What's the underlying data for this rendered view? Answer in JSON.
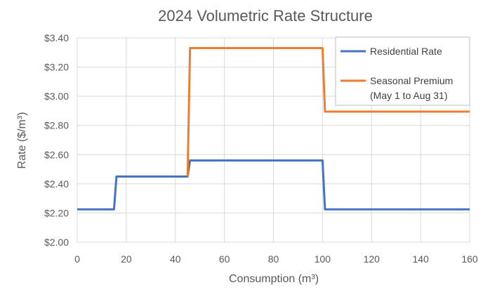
{
  "chart_data": {
    "type": "line",
    "title": "2024 Volumetric Rate Structure",
    "xlabel": "Consumption (m³)",
    "ylabel": "Rate ($/m³)",
    "xlim": [
      0,
      160
    ],
    "ylim": [
      2.0,
      3.4
    ],
    "x_ticks": [
      "0",
      "20",
      "40",
      "60",
      "80",
      "100",
      "120",
      "140",
      "160"
    ],
    "y_ticks": [
      "$2.00",
      "$2.20",
      "$2.40",
      "$2.60",
      "$2.80",
      "$3.00",
      "$3.20",
      "$3.40"
    ],
    "grid": true,
    "legend_position": "top-right",
    "series": [
      {
        "name": "Residential Rate",
        "color": "#4472C4",
        "x": [
          0,
          15,
          16,
          45,
          46,
          100,
          101,
          160
        ],
        "y": [
          2.225,
          2.225,
          2.45,
          2.45,
          2.56,
          2.56,
          2.225,
          2.225
        ]
      },
      {
        "name": "Seasonal Premium",
        "name_line2": "(May 1 to Aug 31)",
        "color": "#ED7D31",
        "x": [
          45,
          46,
          100,
          101,
          160
        ],
        "y": [
          2.45,
          3.33,
          3.33,
          2.895,
          2.895
        ]
      }
    ]
  }
}
